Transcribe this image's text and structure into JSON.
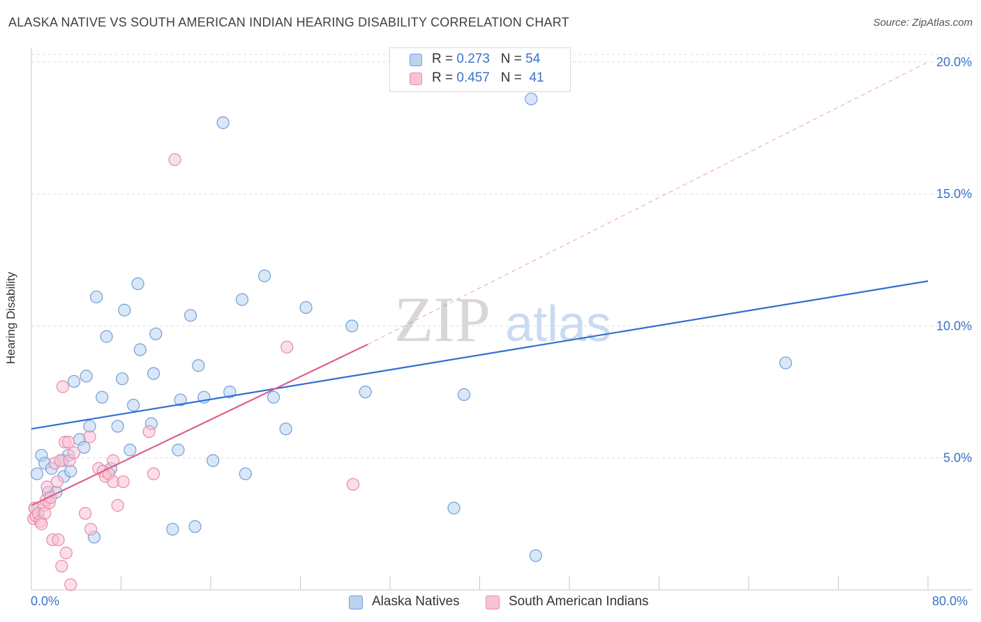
{
  "header": {
    "title": "ALASKA NATIVE VS SOUTH AMERICAN INDIAN HEARING DISABILITY CORRELATION CHART",
    "source": "Source: ZipAtlas.com"
  },
  "legend_top": {
    "rows": [
      {
        "r_label": "R =",
        "r_value": "0.273",
        "n_label": "N =",
        "n_value": "54"
      },
      {
        "r_label": "R =",
        "r_value": "0.457",
        "n_label": "N =",
        "n_value": "41"
      }
    ]
  },
  "legend_bottom": {
    "items": [
      {
        "label": "Alaska Natives"
      },
      {
        "label": "South American Indians"
      }
    ]
  },
  "watermark": {
    "zip": "ZIP",
    "atlas": "atlas"
  },
  "colors": {
    "blue_fill": "#bcd3f0",
    "blue_stroke": "#6f9fd8",
    "blue_line": "#2f6fd0",
    "pink_fill": "#f7c3d3",
    "pink_stroke": "#e88aa8",
    "pink_line": "#e0608a",
    "tick_text": "#3a72c8",
    "grid": "#dddddd"
  },
  "chart_data": {
    "type": "scatter",
    "title": "ALASKA NATIVE VS SOUTH AMERICAN INDIAN HEARING DISABILITY CORRELATION CHART",
    "xlabel": "",
    "ylabel": "Hearing Disability",
    "xlim": [
      0,
      80
    ],
    "ylim": [
      0,
      20.5
    ],
    "x_tick_labels": [
      "0.0%",
      "80.0%"
    ],
    "y_ticks": [
      5,
      10,
      15,
      20
    ],
    "y_tick_labels": [
      "5.0%",
      "10.0%",
      "15.0%",
      "20.0%"
    ],
    "grid": "horizontal dashed",
    "legend": "top-center",
    "series": [
      {
        "name": "Alaska Natives",
        "color": "blue",
        "R": 0.273,
        "N": 54,
        "trend": {
          "x": [
            0,
            80
          ],
          "y": [
            6.1,
            11.7
          ],
          "style": "solid"
        },
        "points": [
          [
            0.5,
            4.4
          ],
          [
            0.9,
            5.1
          ],
          [
            1.2,
            4.8
          ],
          [
            1.5,
            3.7
          ],
          [
            1.8,
            4.6
          ],
          [
            2.2,
            3.7
          ],
          [
            2.8,
            4.9
          ],
          [
            2.9,
            4.3
          ],
          [
            3.3,
            5.1
          ],
          [
            3.5,
            4.5
          ],
          [
            3.8,
            7.9
          ],
          [
            4.3,
            5.7
          ],
          [
            4.7,
            5.4
          ],
          [
            4.9,
            8.1
          ],
          [
            5.2,
            6.2
          ],
          [
            5.6,
            2.0
          ],
          [
            5.8,
            11.1
          ],
          [
            6.3,
            7.3
          ],
          [
            6.7,
            9.6
          ],
          [
            7.1,
            4.6
          ],
          [
            7.7,
            6.2
          ],
          [
            8.1,
            8.0
          ],
          [
            8.3,
            10.6
          ],
          [
            8.8,
            5.3
          ],
          [
            9.1,
            7.0
          ],
          [
            9.5,
            11.6
          ],
          [
            9.7,
            9.1
          ],
          [
            10.7,
            6.3
          ],
          [
            10.9,
            8.2
          ],
          [
            11.1,
            9.7
          ],
          [
            12.6,
            2.3
          ],
          [
            13.1,
            5.3
          ],
          [
            13.3,
            7.2
          ],
          [
            14.2,
            10.4
          ],
          [
            14.6,
            2.4
          ],
          [
            14.9,
            8.5
          ],
          [
            15.4,
            7.3
          ],
          [
            16.2,
            4.9
          ],
          [
            17.1,
            17.7
          ],
          [
            17.7,
            7.5
          ],
          [
            18.8,
            11.0
          ],
          [
            19.1,
            4.4
          ],
          [
            20.8,
            11.9
          ],
          [
            21.6,
            7.3
          ],
          [
            22.7,
            6.1
          ],
          [
            24.5,
            10.7
          ],
          [
            28.6,
            10.0
          ],
          [
            29.8,
            7.5
          ],
          [
            37.7,
            3.1
          ],
          [
            38.6,
            7.4
          ],
          [
            44.6,
            18.6
          ],
          [
            45.0,
            1.3
          ],
          [
            67.3,
            8.6
          ],
          [
            0.3,
            3.1
          ]
        ]
      },
      {
        "name": "South American Indians",
        "color": "pink",
        "R": 0.457,
        "N": 41,
        "trend": {
          "x": [
            0,
            30
          ],
          "y": [
            3.2,
            9.3
          ],
          "style": "solid",
          "extension": {
            "x": [
              30,
              80
            ],
            "y": [
              9.3,
              20.0
            ],
            "style": "dashed"
          }
        },
        "points": [
          [
            0.2,
            2.7
          ],
          [
            0.3,
            3.1
          ],
          [
            0.4,
            2.8
          ],
          [
            0.6,
            2.9
          ],
          [
            0.8,
            2.6
          ],
          [
            0.9,
            2.5
          ],
          [
            1.1,
            3.2
          ],
          [
            1.2,
            2.9
          ],
          [
            1.3,
            3.4
          ],
          [
            1.4,
            3.9
          ],
          [
            1.6,
            3.3
          ],
          [
            1.7,
            3.5
          ],
          [
            1.9,
            1.9
          ],
          [
            2.1,
            4.8
          ],
          [
            2.3,
            4.1
          ],
          [
            2.4,
            1.9
          ],
          [
            2.6,
            4.9
          ],
          [
            2.7,
            0.9
          ],
          [
            2.8,
            7.7
          ],
          [
            3.0,
            5.6
          ],
          [
            3.1,
            1.4
          ],
          [
            3.3,
            5.6
          ],
          [
            3.4,
            4.9
          ],
          [
            3.5,
            0.2
          ],
          [
            3.8,
            5.2
          ],
          [
            4.8,
            2.9
          ],
          [
            5.2,
            5.8
          ],
          [
            5.3,
            2.3
          ],
          [
            6.0,
            4.6
          ],
          [
            6.4,
            4.5
          ],
          [
            6.6,
            4.3
          ],
          [
            6.9,
            4.4
          ],
          [
            7.3,
            4.1
          ],
          [
            7.3,
            4.9
          ],
          [
            7.7,
            3.2
          ],
          [
            8.2,
            4.1
          ],
          [
            10.5,
            6.0
          ],
          [
            10.9,
            4.4
          ],
          [
            12.8,
            16.3
          ],
          [
            22.8,
            9.2
          ],
          [
            28.7,
            4.0
          ]
        ]
      }
    ]
  }
}
